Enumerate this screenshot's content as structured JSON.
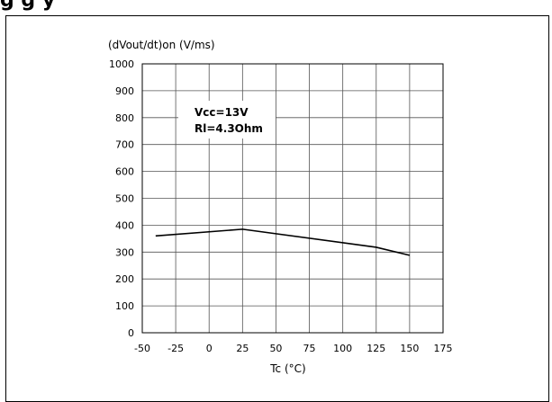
{
  "page": {
    "heading": "g                                     g    y"
  },
  "chart_data": {
    "type": "line",
    "title": "",
    "ylabel": "(dVout/dt)on (V/ms)",
    "xlabel": "Tc (°C)",
    "xlim": [
      -50,
      175
    ],
    "ylim": [
      0,
      1000
    ],
    "x_ticks": [
      -50,
      -25,
      0,
      25,
      50,
      75,
      100,
      125,
      150,
      175
    ],
    "x_tick_labels": [
      "-50",
      "-25",
      "0",
      "25",
      "50",
      "75",
      "100",
      "125",
      "150",
      "175"
    ],
    "y_ticks": [
      0,
      100,
      200,
      300,
      400,
      500,
      600,
      700,
      800,
      900,
      1000
    ],
    "y_tick_labels": [
      "0",
      "100",
      "200",
      "300",
      "400",
      "500",
      "600",
      "700",
      "800",
      "900",
      "1000"
    ],
    "grid": true,
    "series": [
      {
        "x": [
          -40,
          25,
          125,
          150
        ],
        "y": [
          360,
          385,
          318,
          288
        ]
      }
    ],
    "annotation": {
      "lines": [
        "Vcc=13V",
        "Rl=4.3Ohm"
      ]
    }
  }
}
